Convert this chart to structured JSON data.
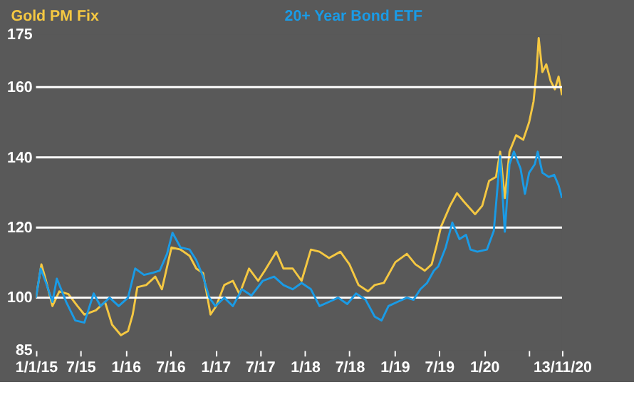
{
  "chart_data": {
    "type": "line",
    "legend": "top",
    "line_style": "solid",
    "xlim": [
      "2015-01-01",
      "2020-11-13"
    ],
    "xticks": [
      {
        "value": "2015-01-01",
        "label": "1/1/15"
      },
      {
        "value": "2015-07-01",
        "label": "7/15"
      },
      {
        "value": "2016-01-01",
        "label": "1/16"
      },
      {
        "value": "2016-07-01",
        "label": "7/16"
      },
      {
        "value": "2017-01-01",
        "label": "1/17"
      },
      {
        "value": "2017-07-01",
        "label": "7/17"
      },
      {
        "value": "2018-01-01",
        "label": "1/18"
      },
      {
        "value": "2018-07-01",
        "label": "7/18"
      },
      {
        "value": "2019-01-01",
        "label": "1/19"
      },
      {
        "value": "2019-07-01",
        "label": "7/19"
      },
      {
        "value": "2020-01-01",
        "label": "1/20"
      },
      {
        "value": "2020-07-01",
        "label": null
      },
      {
        "value": "2020-11-13",
        "label": "13/11/20"
      }
    ],
    "ylim": [
      85,
      175
    ],
    "yticks": [
      85,
      100,
      120,
      140,
      160,
      175
    ],
    "ref_lines": [
      {
        "axis": "y",
        "value": 100,
        "color": "#ffffff"
      },
      {
        "axis": "y",
        "value": 120,
        "color": "#ffffff"
      },
      {
        "axis": "y",
        "value": 140,
        "color": "#ffffff"
      },
      {
        "axis": "y",
        "value": 160,
        "color": "#ffffff"
      }
    ],
    "series": [
      {
        "name": "Gold PM Fix",
        "color": "#f5c842",
        "x": [
          "2015-01-01",
          "2015-01-23",
          "2015-02-11",
          "2015-03-09",
          "2015-04-06",
          "2015-05-13",
          "2015-06-19",
          "2015-07-17",
          "2015-09-02",
          "2015-10-09",
          "2015-11-07",
          "2015-12-13",
          "2016-01-11",
          "2016-01-30",
          "2016-02-18",
          "2016-03-25",
          "2016-05-01",
          "2016-05-28",
          "2016-07-06",
          "2016-08-12",
          "2016-09-18",
          "2016-10-15",
          "2016-11-12",
          "2016-12-12",
          "2017-01-04",
          "2017-02-06",
          "2017-03-13",
          "2017-04-09",
          "2017-05-18",
          "2017-06-24",
          "2017-07-21",
          "2017-09-06",
          "2017-10-05",
          "2017-11-12",
          "2017-12-18",
          "2018-01-25",
          "2018-03-01",
          "2018-04-09",
          "2018-05-25",
          "2018-07-01",
          "2018-08-07",
          "2018-09-15",
          "2018-10-12",
          "2018-11-18",
          "2019-01-04",
          "2019-02-20",
          "2019-03-27",
          "2019-05-04",
          "2019-06-01",
          "2019-06-19",
          "2019-07-09",
          "2019-08-15",
          "2019-09-12",
          "2019-10-10",
          "2019-11-25",
          "2019-12-24",
          "2020-01-21",
          "2020-02-18",
          "2020-03-06",
          "2020-03-25",
          "2020-04-13",
          "2020-05-10",
          "2020-06-08",
          "2020-07-02",
          "2020-07-20",
          "2020-08-01",
          "2020-08-10",
          "2020-08-25",
          "2020-09-10",
          "2020-09-28",
          "2020-10-15",
          "2020-10-30",
          "2020-11-13"
        ],
        "values": [
          100,
          109.5,
          104.8,
          97.6,
          101.8,
          101,
          97.6,
          95.2,
          96.4,
          98.8,
          92.3,
          89.3,
          90.5,
          95.2,
          103,
          103.6,
          106,
          102.4,
          114.3,
          113.7,
          111.9,
          108.3,
          107,
          95.2,
          97.6,
          103.6,
          104.8,
          101,
          108.3,
          104.8,
          107.7,
          113.1,
          108.3,
          108.3,
          104.8,
          113.7,
          113.1,
          111.3,
          113.1,
          109.5,
          103.6,
          101.8,
          103.6,
          104.2,
          110.1,
          112.5,
          109.5,
          107.7,
          109.5,
          114.3,
          120.2,
          126.2,
          129.8,
          127.4,
          123.8,
          126.2,
          133.3,
          134.4,
          141.6,
          128.4,
          141.6,
          146.3,
          145,
          150,
          155.9,
          164.3,
          174,
          164.3,
          166.5,
          161.7,
          159.4,
          163,
          157.7
        ]
      },
      {
        "name": "20+ Year Bond ETF",
        "color": "#1a9be6",
        "x": [
          "2015-01-01",
          "2015-01-20",
          "2015-02-11",
          "2015-03-09",
          "2015-03-27",
          "2015-05-04",
          "2015-06-10",
          "2015-07-17",
          "2015-08-24",
          "2015-09-21",
          "2015-10-28",
          "2015-12-04",
          "2016-01-11",
          "2016-02-09",
          "2016-03-16",
          "2016-04-22",
          "2016-05-19",
          "2016-06-18",
          "2016-07-10",
          "2016-08-12",
          "2016-09-18",
          "2016-10-15",
          "2016-11-12",
          "2016-12-07",
          "2017-01-01",
          "2017-02-06",
          "2017-03-13",
          "2017-04-19",
          "2017-05-28",
          "2017-07-13",
          "2017-08-28",
          "2017-10-05",
          "2017-11-12",
          "2017-12-18",
          "2018-01-25",
          "2018-03-01",
          "2018-04-09",
          "2018-05-16",
          "2018-06-22",
          "2018-07-28",
          "2018-09-05",
          "2018-10-12",
          "2018-11-09",
          "2018-12-07",
          "2019-01-13",
          "2019-02-20",
          "2019-03-19",
          "2019-04-16",
          "2019-05-13",
          "2019-06-10",
          "2019-06-28",
          "2019-07-28",
          "2019-08-24",
          "2019-09-22",
          "2019-10-19",
          "2019-11-06",
          "2019-12-04",
          "2020-01-12",
          "2020-02-09",
          "2020-03-06",
          "2020-03-25",
          "2020-04-13",
          "2020-05-01",
          "2020-05-28",
          "2020-06-15",
          "2020-07-02",
          "2020-07-25",
          "2020-08-06",
          "2020-08-25",
          "2020-09-20",
          "2020-10-12",
          "2020-10-30",
          "2020-11-13"
        ],
        "values": [
          100,
          108.3,
          104.2,
          98.8,
          105.4,
          98.8,
          93.5,
          92.9,
          101.2,
          97.6,
          100,
          97.6,
          100,
          108.3,
          106.5,
          107.1,
          107.7,
          112.5,
          118.5,
          114.3,
          113.7,
          110.7,
          106,
          100,
          97.6,
          100,
          97.6,
          102.4,
          100.6,
          104.8,
          106,
          103.6,
          102.4,
          104.2,
          102.4,
          97.6,
          98.8,
          100,
          98.2,
          101.2,
          99.4,
          94.6,
          93.5,
          97.6,
          98.8,
          100,
          99.4,
          102.4,
          104.2,
          107.7,
          108.9,
          114.3,
          121.4,
          116.7,
          117.9,
          113.7,
          113.1,
          113.7,
          119,
          140.4,
          118.8,
          138,
          141.6,
          136.8,
          129.6,
          135.6,
          138,
          141.6,
          135.6,
          134.4,
          135,
          132,
          128.4
        ]
      }
    ]
  }
}
